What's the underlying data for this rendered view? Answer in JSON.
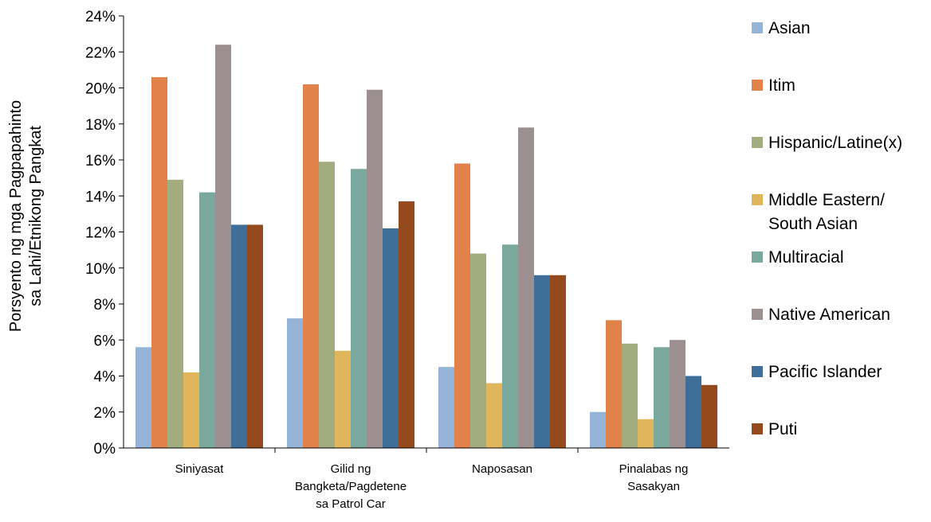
{
  "chart_data": {
    "type": "bar",
    "title": "",
    "xlabel": "",
    "ylabel_lines": [
      "Porsyento ng mga Pagpapahinto",
      "sa Lahi/Etnikong Pangkat"
    ],
    "ylim": [
      0,
      24
    ],
    "ytick_step": 2,
    "ytick_suffix": "%",
    "grid": false,
    "legend_position": "right",
    "categories": [
      [
        "Siniyasat"
      ],
      [
        "Gilid ng",
        "Bangketa/Pagdetene",
        "sa Patrol Car"
      ],
      [
        "Naposasan"
      ],
      [
        "Pinalabas ng",
        "Sasakyan"
      ]
    ],
    "series": [
      {
        "name": [
          "Asian"
        ],
        "color": "#95b3d7",
        "values": [
          5.6,
          7.2,
          4.5,
          2.0
        ]
      },
      {
        "name": [
          "Itim"
        ],
        "color": "#e0824a",
        "values": [
          20.6,
          20.2,
          15.8,
          7.1
        ]
      },
      {
        "name": [
          "Hispanic/Latine(x)"
        ],
        "color": "#a3ac7f",
        "values": [
          14.9,
          15.9,
          10.8,
          5.8
        ]
      },
      {
        "name": [
          "Middle Eastern/",
          "South Asian"
        ],
        "color": "#dfb65c",
        "values": [
          4.2,
          5.4,
          3.6,
          1.6
        ]
      },
      {
        "name": [
          "Multiracial"
        ],
        "color": "#7aa89d",
        "values": [
          14.2,
          15.5,
          11.3,
          5.6
        ]
      },
      {
        "name": [
          "Native American"
        ],
        "color": "#9b8f8f",
        "values": [
          22.4,
          19.9,
          17.8,
          6.0
        ]
      },
      {
        "name": [
          "Pacific Islander"
        ],
        "color": "#3f6f99",
        "values": [
          12.4,
          12.2,
          9.6,
          4.0
        ]
      },
      {
        "name": [
          "Puti"
        ],
        "color": "#954a1e",
        "values": [
          12.4,
          13.7,
          9.6,
          3.5
        ]
      }
    ]
  }
}
